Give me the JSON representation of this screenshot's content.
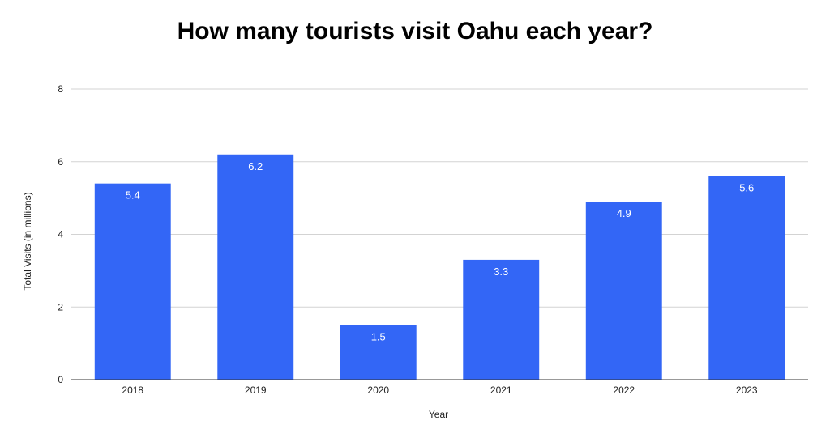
{
  "chart_data": {
    "type": "bar",
    "title": "How many tourists visit Oahu each year?",
    "xlabel": "Year",
    "ylabel": "Total Visits (in millions)",
    "categories": [
      "2018",
      "2019",
      "2020",
      "2021",
      "2022",
      "2023"
    ],
    "values": [
      5.4,
      6.2,
      1.5,
      3.3,
      4.9,
      5.6
    ],
    "data_labels": [
      "5.4",
      "6.2",
      "1.5",
      "3.3",
      "4.9",
      "5.6"
    ],
    "ylim": [
      0,
      8
    ],
    "yticks": [
      "0",
      "2",
      "4",
      "6",
      "8"
    ],
    "ytick_values": [
      0,
      2,
      4,
      6,
      8
    ],
    "grid": true,
    "legend": "none",
    "bar_color": "#3366f6",
    "grid_color": "#d3d3d3"
  }
}
